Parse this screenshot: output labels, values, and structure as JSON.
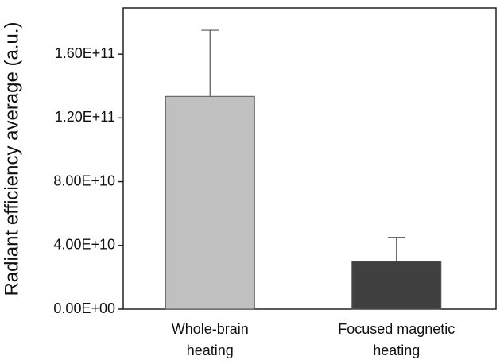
{
  "chart_data": {
    "type": "bar",
    "ylabel": "Radiant efficiency average (a.u.)",
    "categories": [
      [
        "Whole-brain",
        "heating"
      ],
      [
        "Focused magnetic",
        "heating"
      ]
    ],
    "values": [
      133500000000,
      30000000000
    ],
    "errors": [
      41500000000,
      15000000000
    ],
    "colors": [
      "#c0c0c0",
      "#404040"
    ],
    "ylim": [
      0,
      189000000000
    ],
    "yticks": [
      {
        "value": 0,
        "label": "0.00E+00"
      },
      {
        "value": 40000000000,
        "label": "4.00E+10"
      },
      {
        "value": 80000000000,
        "label": "8.00E+10"
      },
      {
        "value": 120000000000,
        "label": "1.20E+11"
      },
      {
        "value": 160000000000,
        "label": "1.60E+11"
      }
    ]
  }
}
